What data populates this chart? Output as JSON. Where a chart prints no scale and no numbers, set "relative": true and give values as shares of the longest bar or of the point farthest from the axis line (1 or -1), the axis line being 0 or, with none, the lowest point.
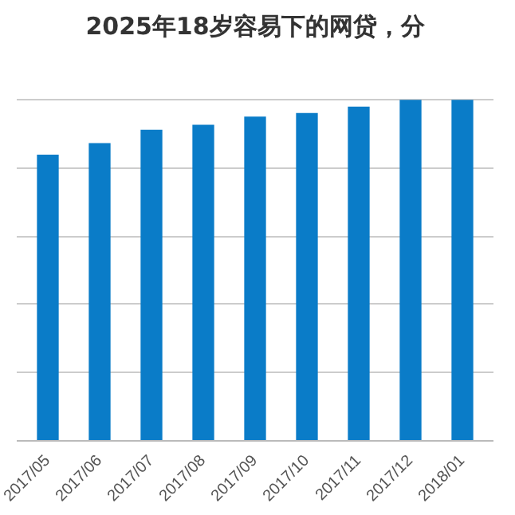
{
  "chart_data": {
    "type": "bar",
    "title": "2025年18岁容易下的网贷，分",
    "categories": [
      "2017/05",
      "2017/06",
      "2017/07",
      "2017/08",
      "2017/09",
      "2017/10",
      "2017/11",
      "2017/12",
      "2018/01"
    ],
    "values": [
      0.839,
      0.873,
      0.912,
      0.927,
      0.951,
      0.961,
      0.98,
      1,
      1
    ],
    "color": "#0a7cc8",
    "relative": true,
    "grid": "y"
  }
}
